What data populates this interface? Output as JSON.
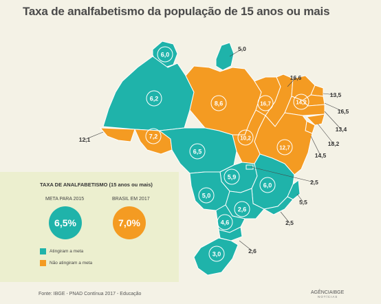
{
  "title": "Taxa de analfabetismo da população de 15 anos ou mais",
  "colors": {
    "met": "#1fb3aa",
    "not_met": "#f49b22",
    "background": "#f4f2e6",
    "panel": "#ecefcf",
    "label_ring": "#ffffff"
  },
  "legend": {
    "heading": "TAXA DE ANALFABETISMO (15 anos ou mais)",
    "goal_label": "META PARA 2015",
    "goal_value": "6,5%",
    "brazil_label": "BRASIL EM 2017",
    "brazil_value": "7,0%",
    "met_label": "Atingiram a meta",
    "not_met_label": "Não atingiram a meta"
  },
  "states": [
    {
      "code": "RR",
      "rate": "6,0",
      "status": "met"
    },
    {
      "code": "AP",
      "rate": "5,0",
      "status": "met"
    },
    {
      "code": "AM",
      "rate": "6,2",
      "status": "met"
    },
    {
      "code": "PA",
      "rate": "8,6",
      "status": "not_met"
    },
    {
      "code": "MA",
      "rate": "16,7",
      "status": "not_met"
    },
    {
      "code": "PI",
      "rate": "16,6",
      "status": "not_met"
    },
    {
      "code": "CE",
      "rate": "14,2",
      "status": "not_met"
    },
    {
      "code": "RN",
      "rate": "13,5",
      "status": "not_met"
    },
    {
      "code": "PB",
      "rate": "16,5",
      "status": "not_met"
    },
    {
      "code": "PE",
      "rate": "13,4",
      "status": "not_met"
    },
    {
      "code": "AL",
      "rate": "18,2",
      "status": "not_met"
    },
    {
      "code": "SE",
      "rate": "14,5",
      "status": "not_met"
    },
    {
      "code": "BA",
      "rate": "12,7",
      "status": "not_met"
    },
    {
      "code": "TO",
      "rate": "10,2",
      "status": "not_met"
    },
    {
      "code": "AC",
      "rate": "12,1",
      "status": "not_met"
    },
    {
      "code": "RO",
      "rate": "7,2",
      "status": "not_met"
    },
    {
      "code": "MT",
      "rate": "6,5",
      "status": "met"
    },
    {
      "code": "GO",
      "rate": "5,9",
      "status": "met"
    },
    {
      "code": "DF",
      "rate": "2,5",
      "status": "met"
    },
    {
      "code": "MG",
      "rate": "6,0",
      "status": "met"
    },
    {
      "code": "ES",
      "rate": "5,5",
      "status": "met"
    },
    {
      "code": "MS",
      "rate": "5,0",
      "status": "met"
    },
    {
      "code": "SP",
      "rate": "2,6",
      "status": "met"
    },
    {
      "code": "RJ",
      "rate": "2,5",
      "status": "met"
    },
    {
      "code": "PR",
      "rate": "4,6",
      "status": "met"
    },
    {
      "code": "SC",
      "rate": "2,6",
      "status": "met"
    },
    {
      "code": "RS",
      "rate": "3,0",
      "status": "met"
    }
  ],
  "footer": "Fonte: IBGE - PNAD Contínua 2017 - Educação",
  "logo": {
    "name": "AGÊNCIAIBGE",
    "sub": "NOTÍCIAS"
  }
}
